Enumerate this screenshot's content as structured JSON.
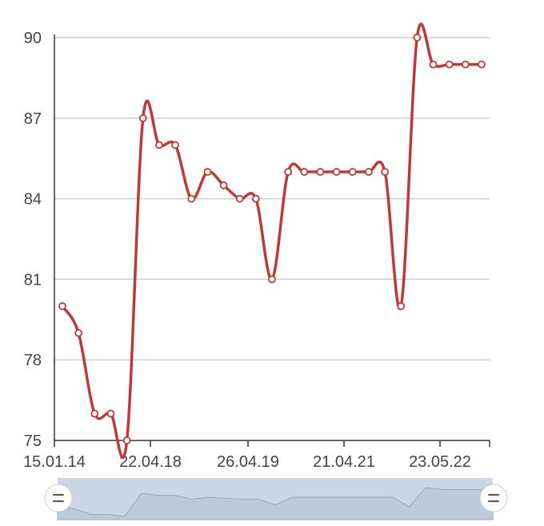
{
  "chart_data": {
    "type": "line",
    "title": "",
    "xlabel": "",
    "ylabel": "",
    "ylim": [
      75,
      90
    ],
    "y_ticks": [
      "75",
      "78",
      "81",
      "84",
      "87",
      "90"
    ],
    "x_tick_labels": [
      "15.01.14",
      "22.04.18",
      "26.04.19",
      "21.04.21",
      "23.05.22"
    ],
    "grid": true,
    "legend": "none",
    "line_color": "#c0393a",
    "points": [
      80,
      79,
      76,
      76,
      75,
      87,
      86,
      86,
      84,
      85,
      84.5,
      84,
      84,
      81,
      85,
      85,
      85,
      85,
      85,
      85,
      85,
      80,
      90,
      89,
      89,
      89,
      89
    ]
  },
  "navigator": {
    "handle_icon": "grip-icon",
    "selection_color": "#c7d3e2"
  }
}
